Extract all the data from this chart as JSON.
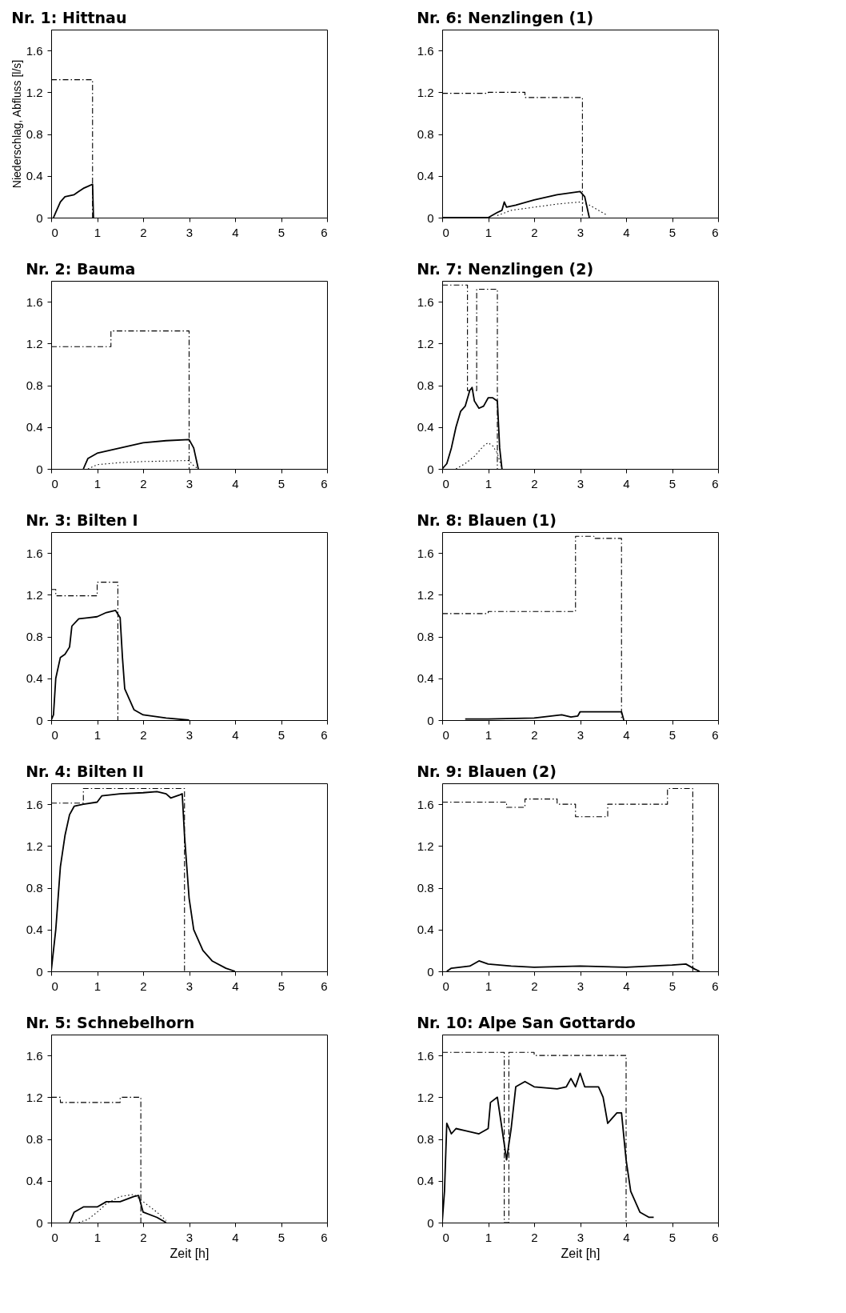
{
  "chart_data": [
    {
      "type": "line",
      "title": "Nr. 1:  Hittnau",
      "ylabel": "Niederschlag, Abfluss [l/s]",
      "xlim": [
        0,
        6
      ],
      "xticks": [
        0,
        1,
        2,
        3,
        4,
        5,
        6
      ],
      "ylim": [
        0,
        1.8
      ],
      "yticks": [
        0,
        0.4,
        0.8,
        1.2,
        1.6
      ],
      "grid": false,
      "series": [
        {
          "color": "#000000",
          "line_style": "dashed",
          "x": [
            0,
            0.9,
            0.9
          ],
          "values": [
            1.32,
            1.32,
            0
          ]
        },
        {
          "color": "#000000",
          "line_style": "solid",
          "x": [
            0.05,
            0.1,
            0.2,
            0.3,
            0.5,
            0.6,
            0.7,
            0.8,
            0.9,
            0.92
          ],
          "values": [
            0,
            0.05,
            0.15,
            0.2,
            0.22,
            0.25,
            0.28,
            0.3,
            0.32,
            0
          ]
        }
      ]
    },
    {
      "type": "line",
      "title": "Nr. 6:  Nenzlingen  (1)",
      "xlim": [
        0,
        6
      ],
      "xticks": [
        0,
        1,
        2,
        3,
        4,
        5,
        6
      ],
      "ylim": [
        0,
        1.8
      ],
      "yticks": [
        0,
        0.4,
        0.8,
        1.2,
        1.6
      ],
      "grid": false,
      "series": [
        {
          "color": "#000000",
          "line_style": "dashed",
          "x": [
            0,
            1,
            1,
            1.8,
            1.8,
            3.05,
            3.05
          ],
          "values": [
            1.19,
            1.19,
            1.2,
            1.2,
            1.15,
            1.15,
            0
          ]
        },
        {
          "color": "#000000",
          "line_style": "solid",
          "x": [
            0,
            1,
            1.2,
            1.3,
            1.35,
            1.4,
            1.6,
            2,
            2.5,
            3,
            3.1,
            3.2
          ],
          "values": [
            0,
            0,
            0.05,
            0.07,
            0.15,
            0.1,
            0.12,
            0.17,
            0.22,
            0.25,
            0.2,
            0
          ]
        },
        {
          "color": "#000000",
          "line_style": "dotted",
          "x": [
            1.2,
            1.5,
            2,
            2.5,
            3,
            3.2,
            3.6
          ],
          "values": [
            0.02,
            0.07,
            0.1,
            0.13,
            0.15,
            0.12,
            0.02
          ]
        }
      ]
    },
    {
      "type": "line",
      "title": "Nr. 2:  Bauma",
      "xlim": [
        0,
        6
      ],
      "xticks": [
        0,
        1,
        2,
        3,
        4,
        5,
        6
      ],
      "ylim": [
        0,
        1.8
      ],
      "yticks": [
        0,
        0.4,
        0.8,
        1.2,
        1.6
      ],
      "grid": false,
      "series": [
        {
          "color": "#000000",
          "line_style": "dashed",
          "x": [
            0,
            1.3,
            1.3,
            3.0,
            3.0
          ],
          "values": [
            1.17,
            1.17,
            1.32,
            1.32,
            0
          ]
        },
        {
          "color": "#000000",
          "line_style": "solid",
          "x": [
            0.7,
            0.8,
            1,
            1.5,
            2,
            2.5,
            3,
            3.1,
            3.2
          ],
          "values": [
            0,
            0.1,
            0.15,
            0.2,
            0.25,
            0.27,
            0.28,
            0.2,
            0
          ]
        },
        {
          "color": "#000000",
          "line_style": "dotted",
          "x": [
            0.8,
            1,
            1.5,
            2,
            3,
            3.1,
            3.2
          ],
          "values": [
            0,
            0.04,
            0.06,
            0.07,
            0.08,
            0.03,
            0
          ]
        }
      ]
    },
    {
      "type": "line",
      "title": "Nr. 7:  Nenzlingen  (2)",
      "xlim": [
        0,
        6
      ],
      "xticks": [
        0,
        1,
        2,
        3,
        4,
        5,
        6
      ],
      "ylim": [
        0,
        1.8
      ],
      "yticks": [
        0,
        0.4,
        0.8,
        1.2,
        1.6
      ],
      "grid": false,
      "series": [
        {
          "color": "#000000",
          "line_style": "dashed",
          "x": [
            0,
            0.55,
            0.55,
            0.75,
            0.75,
            1.2,
            1.2
          ],
          "values": [
            1.76,
            1.76,
            0.75,
            0.75,
            1.72,
            1.72,
            0
          ]
        },
        {
          "color": "#000000",
          "line_style": "solid",
          "x": [
            0,
            0.1,
            0.2,
            0.3,
            0.4,
            0.5,
            0.6,
            0.65,
            0.7,
            0.8,
            0.9,
            1.0,
            1.1,
            1.2,
            1.25,
            1.3
          ],
          "values": [
            0,
            0.05,
            0.2,
            0.4,
            0.55,
            0.6,
            0.75,
            0.78,
            0.65,
            0.58,
            0.6,
            0.68,
            0.68,
            0.65,
            0.2,
            0
          ]
        },
        {
          "color": "#000000",
          "line_style": "dotted",
          "x": [
            0.3,
            0.5,
            0.7,
            0.9,
            1.0,
            1.1,
            1.2,
            1.3
          ],
          "values": [
            0,
            0.05,
            0.12,
            0.22,
            0.25,
            0.22,
            0.15,
            0
          ]
        }
      ]
    },
    {
      "type": "line",
      "title": "Nr. 3:  Bilten I",
      "xlim": [
        0,
        6
      ],
      "xticks": [
        0,
        1,
        2,
        3,
        4,
        5,
        6
      ],
      "ylim": [
        0,
        1.8
      ],
      "yticks": [
        0,
        0.4,
        0.8,
        1.2,
        1.6
      ],
      "grid": false,
      "series": [
        {
          "color": "#000000",
          "line_style": "dashed",
          "x": [
            0,
            0.1,
            0.1,
            1.0,
            1.0,
            1.45,
            1.45
          ],
          "values": [
            1.25,
            1.25,
            1.19,
            1.19,
            1.32,
            1.32,
            0
          ]
        },
        {
          "color": "#000000",
          "line_style": "solid",
          "x": [
            0,
            0.05,
            0.1,
            0.2,
            0.3,
            0.4,
            0.45,
            0.6,
            0.8,
            1,
            1.2,
            1.4,
            1.5,
            1.55,
            1.6,
            1.8,
            2,
            2.5,
            3
          ],
          "values": [
            0,
            0.05,
            0.4,
            0.6,
            0.63,
            0.7,
            0.9,
            0.97,
            0.98,
            0.99,
            1.03,
            1.05,
            0.98,
            0.6,
            0.3,
            0.1,
            0.05,
            0.02,
            0
          ]
        }
      ]
    },
    {
      "type": "line",
      "title": "Nr. 8:  Blauen  (1)",
      "xlim": [
        0,
        6
      ],
      "xticks": [
        0,
        1,
        2,
        3,
        4,
        5,
        6
      ],
      "ylim": [
        0,
        1.8
      ],
      "yticks": [
        0,
        0.4,
        0.8,
        1.2,
        1.6
      ],
      "grid": false,
      "series": [
        {
          "color": "#000000",
          "line_style": "dashed",
          "x": [
            0,
            1,
            1,
            2.9,
            2.9,
            3.3,
            3.3,
            3.9,
            3.9
          ],
          "values": [
            1.02,
            1.02,
            1.04,
            1.04,
            1.76,
            1.76,
            1.74,
            1.74,
            0
          ]
        },
        {
          "color": "#000000",
          "line_style": "solid",
          "x": [
            0.5,
            1,
            2,
            2.6,
            2.8,
            2.95,
            3.0,
            3.9,
            3.95
          ],
          "values": [
            0.01,
            0.01,
            0.02,
            0.05,
            0.03,
            0.04,
            0.08,
            0.08,
            0
          ]
        }
      ]
    },
    {
      "type": "line",
      "title": "Nr. 4:  Bilten II",
      "xlim": [
        0,
        6
      ],
      "xticks": [
        0,
        1,
        2,
        3,
        4,
        5,
        6
      ],
      "ylim": [
        0,
        1.8
      ],
      "yticks": [
        0,
        0.4,
        0.8,
        1.2,
        1.6
      ],
      "grid": false,
      "series": [
        {
          "color": "#000000",
          "line_style": "dashed",
          "x": [
            0,
            0.7,
            0.7,
            2.9,
            2.9
          ],
          "values": [
            1.61,
            1.61,
            1.75,
            1.75,
            0
          ]
        },
        {
          "color": "#000000",
          "line_style": "solid",
          "x": [
            0,
            0.1,
            0.2,
            0.3,
            0.4,
            0.5,
            0.7,
            1.0,
            1.1,
            1.5,
            2,
            2.3,
            2.5,
            2.6,
            2.8,
            2.85,
            2.9,
            3.0,
            3.1,
            3.3,
            3.5,
            3.8,
            4.0
          ],
          "values": [
            0,
            0.4,
            1.0,
            1.3,
            1.5,
            1.58,
            1.6,
            1.62,
            1.68,
            1.7,
            1.71,
            1.72,
            1.7,
            1.66,
            1.69,
            1.7,
            1.3,
            0.7,
            0.4,
            0.2,
            0.1,
            0.03,
            0
          ]
        }
      ]
    },
    {
      "type": "line",
      "title": "Nr. 9:  Blauen  (2)",
      "xlim": [
        0,
        6
      ],
      "xticks": [
        0,
        1,
        2,
        3,
        4,
        5,
        6
      ],
      "ylim": [
        0,
        1.8
      ],
      "yticks": [
        0,
        0.4,
        0.8,
        1.2,
        1.6
      ],
      "grid": false,
      "series": [
        {
          "color": "#000000",
          "line_style": "dashed",
          "x": [
            0,
            1.4,
            1.4,
            1.8,
            1.8,
            2.5,
            2.5,
            2.9,
            2.9,
            3.6,
            3.6,
            4.9,
            4.9,
            5.45,
            5.45
          ],
          "values": [
            1.62,
            1.62,
            1.57,
            1.57,
            1.65,
            1.65,
            1.6,
            1.6,
            1.48,
            1.48,
            1.6,
            1.6,
            1.75,
            1.75,
            0
          ]
        },
        {
          "color": "#000000",
          "line_style": "solid",
          "x": [
            0.1,
            0.2,
            0.6,
            0.8,
            1,
            1.5,
            2,
            3,
            4,
            5,
            5.3,
            5.5,
            5.6
          ],
          "values": [
            0,
            0.03,
            0.05,
            0.1,
            0.07,
            0.05,
            0.04,
            0.05,
            0.04,
            0.06,
            0.07,
            0.02,
            0
          ]
        }
      ]
    },
    {
      "type": "line",
      "title": "Nr. 5:   Schnebelhorn",
      "xlabel": "Zeit [h]",
      "xlim": [
        0,
        6
      ],
      "xticks": [
        0,
        1,
        2,
        3,
        4,
        5,
        6
      ],
      "ylim": [
        0,
        1.8
      ],
      "yticks": [
        0,
        0.4,
        0.8,
        1.2,
        1.6
      ],
      "grid": false,
      "series": [
        {
          "color": "#000000",
          "line_style": "dashed",
          "x": [
            0,
            0.2,
            0.2,
            1.5,
            1.5,
            1.95,
            1.95
          ],
          "values": [
            1.2,
            1.2,
            1.15,
            1.15,
            1.2,
            1.2,
            0
          ]
        },
        {
          "color": "#000000",
          "line_style": "solid",
          "x": [
            0.4,
            0.5,
            0.7,
            1,
            1.2,
            1.5,
            1.8,
            1.9,
            2.0,
            2.3,
            2.5
          ],
          "values": [
            0,
            0.1,
            0.15,
            0.15,
            0.2,
            0.2,
            0.25,
            0.26,
            0.1,
            0.05,
            0
          ]
        },
        {
          "color": "#000000",
          "line_style": "dotted",
          "x": [
            0.6,
            0.8,
            1,
            1.2,
            1.5,
            1.8,
            2,
            2.3,
            2.5
          ],
          "values": [
            0,
            0.03,
            0.1,
            0.18,
            0.25,
            0.27,
            0.2,
            0.1,
            0.02
          ]
        }
      ]
    },
    {
      "type": "line",
      "title": "Nr. 10: Alpe San Gottardo",
      "xlabel": "Zeit [h]",
      "xlim": [
        0,
        6
      ],
      "xticks": [
        0,
        1,
        2,
        3,
        4,
        5,
        6
      ],
      "ylim": [
        0,
        1.8
      ],
      "yticks": [
        0,
        0.4,
        0.8,
        1.2,
        1.6
      ],
      "grid": false,
      "series": [
        {
          "color": "#000000",
          "line_style": "dashed",
          "x": [
            0,
            1.35,
            1.35,
            1.45,
            1.45,
            2.0,
            2.0,
            4.0,
            4.0
          ],
          "values": [
            1.63,
            1.63,
            0,
            0,
            1.63,
            1.63,
            1.6,
            1.6,
            0
          ]
        },
        {
          "color": "#000000",
          "line_style": "solid",
          "x": [
            0,
            0.05,
            0.1,
            0.2,
            0.3,
            0.5,
            0.8,
            1.0,
            1.05,
            1.2,
            1.3,
            1.4,
            1.5,
            1.6,
            1.8,
            2.0,
            2.5,
            2.7,
            2.8,
            2.9,
            3.0,
            3.1,
            3.4,
            3.5,
            3.6,
            3.8,
            3.9,
            4.0,
            4.1,
            4.3,
            4.5,
            4.6
          ],
          "values": [
            0,
            0.3,
            0.95,
            0.85,
            0.9,
            0.88,
            0.85,
            0.9,
            1.15,
            1.2,
            0.9,
            0.6,
            0.9,
            1.3,
            1.35,
            1.3,
            1.28,
            1.3,
            1.38,
            1.3,
            1.43,
            1.3,
            1.3,
            1.2,
            0.95,
            1.05,
            1.05,
            0.6,
            0.3,
            0.1,
            0.05,
            0.05
          ]
        }
      ]
    }
  ]
}
